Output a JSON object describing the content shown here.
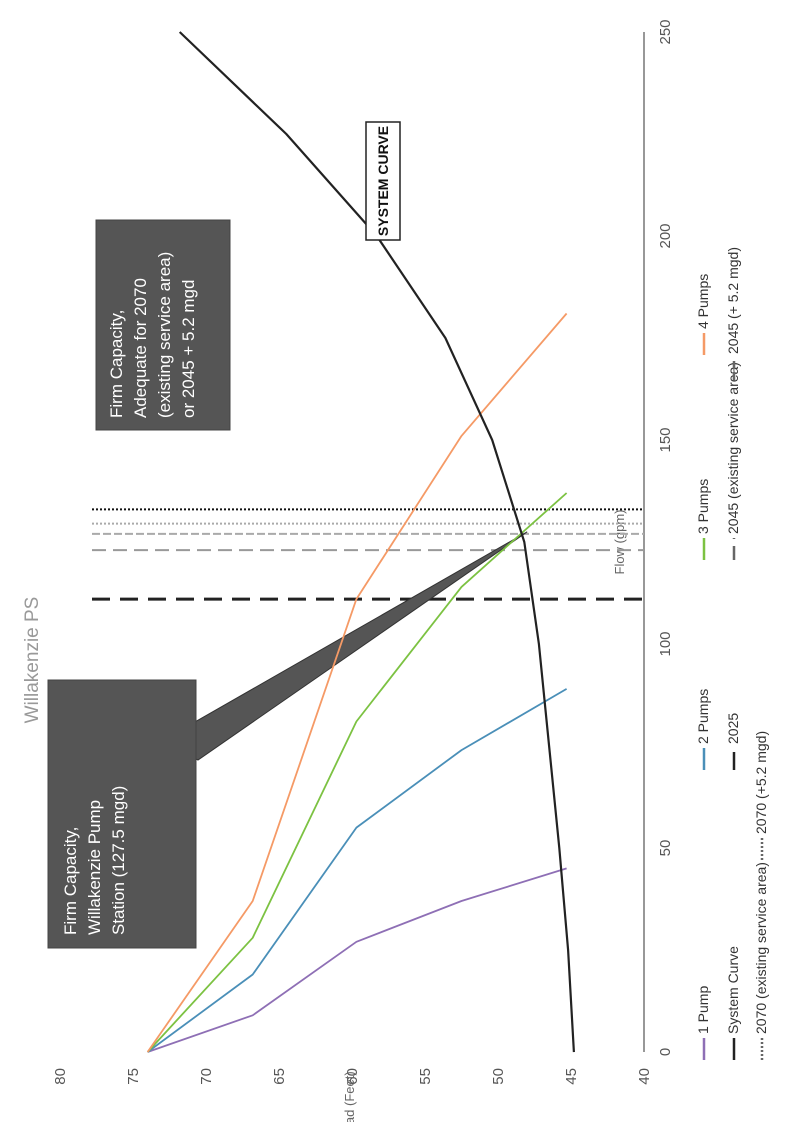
{
  "chart_data": {
    "type": "line",
    "title": "Willakenzie PS",
    "xlabel": "Flow (gpm)",
    "ylabel": "Head (Feet)",
    "xlim": [
      0,
      250
    ],
    "ylim": [
      40,
      80
    ],
    "x_ticks": [
      0,
      50,
      100,
      150,
      200,
      250
    ],
    "y_ticks": [
      40,
      45,
      50,
      55,
      60,
      65,
      70,
      75,
      80
    ],
    "orientation": "rotated 90° clockwise on the page",
    "grid": false,
    "legend_position": "bottom",
    "series": [
      {
        "name": "1 Pump",
        "color": "#8e6fb5",
        "style": "solid",
        "points": [
          [
            0,
            74
          ],
          [
            9,
            66.8
          ],
          [
            27,
            59.7
          ],
          [
            37,
            52.5
          ],
          [
            45,
            45.3
          ]
        ]
      },
      {
        "name": "2 Pumps",
        "color": "#4a8fb8",
        "style": "solid",
        "points": [
          [
            0,
            74
          ],
          [
            19,
            66.8
          ],
          [
            55,
            59.7
          ],
          [
            74,
            52.5
          ],
          [
            89,
            45.3
          ]
        ]
      },
      {
        "name": "3 Pumps",
        "color": "#7cc242",
        "style": "solid",
        "points": [
          [
            0,
            74
          ],
          [
            28,
            66.8
          ],
          [
            81,
            59.7
          ],
          [
            114,
            52.5
          ],
          [
            137,
            45.3
          ]
        ]
      },
      {
        "name": "4 Pumps",
        "color": "#f59a66",
        "style": "solid",
        "points": [
          [
            0,
            74
          ],
          [
            37,
            66.8
          ],
          [
            111,
            59.7
          ],
          [
            151,
            52.5
          ],
          [
            181,
            45.3
          ]
        ]
      },
      {
        "name": "System Curve",
        "color": "#222222",
        "style": "solid",
        "points": [
          [
            0,
            44.8
          ],
          [
            25,
            45.2
          ],
          [
            50,
            45.8
          ],
          [
            75,
            46.5
          ],
          [
            100,
            47.2
          ],
          [
            125,
            48.2
          ],
          [
            150,
            50.4
          ],
          [
            175,
            53.6
          ],
          [
            200,
            58.3
          ],
          [
            225,
            64.5
          ],
          [
            250,
            71.8
          ]
        ]
      },
      {
        "name": "2025",
        "color": "#222222",
        "style": "long-dash",
        "x_value": 111
      },
      {
        "name": "2045 (existing service area)",
        "color": "#999999",
        "style": "dash",
        "x_value": 123
      },
      {
        "name": "2045 (+ 5.2 mgd)",
        "color": "#aaaaaa",
        "style": "dense-dash",
        "x_value": 127
      },
      {
        "name": "2070 (existing service area)",
        "color": "#aaaaaa",
        "style": "dotted",
        "x_value": 129.5
      },
      {
        "name": "2070 (+5.2 mgd)",
        "color": "#111111",
        "style": "dotted",
        "x_value": 133
      }
    ],
    "legend": [
      {
        "label": "1 Pump",
        "color": "#8e6fb5",
        "style": "solid"
      },
      {
        "label": "2 Pumps",
        "color": "#4a8fb8",
        "style": "solid"
      },
      {
        "label": "3 Pumps",
        "color": "#7cc242",
        "style": "solid"
      },
      {
        "label": "4 Pumps",
        "color": "#f59a66",
        "style": "solid"
      },
      {
        "label": "System Curve",
        "color": "#222222",
        "style": "solid"
      },
      {
        "label": "2025",
        "color": "#222222",
        "style": "long-dash"
      },
      {
        "label": "2045 (existing service area)",
        "color": "#666666",
        "style": "dash"
      },
      {
        "label": "2045 (+ 5.2 mgd)",
        "color": "#666666",
        "style": "dense-dash"
      },
      {
        "label": "2070 (existing service area)",
        "color": "#666666",
        "style": "dotted"
      },
      {
        "label": "2070 (+5.2 mgd)",
        "color": "#666666",
        "style": "dotted"
      }
    ],
    "annotations": [
      {
        "id": "firm-capacity-pump-station",
        "lines": [
          "Firm Capacity,",
          "Willakenzie Pump",
          "Station (127.5 mgd)"
        ],
        "points_to": [
          127.5,
          48
        ]
      },
      {
        "id": "firm-capacity-adequate",
        "lines": [
          "Firm Capacity,",
          "Adequate for 2070",
          "(existing service area)",
          "or 2045 + 5.2 mgd"
        ]
      },
      {
        "id": "system-curve-label",
        "lines": [
          "SYSTEM CURVE"
        ]
      }
    ]
  }
}
